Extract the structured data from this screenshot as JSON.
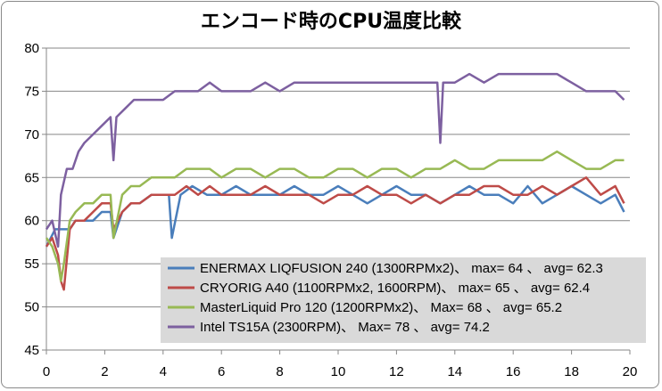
{
  "chart_data": {
    "type": "line",
    "title": "エンコード時のCPU温度比較",
    "xlim": [
      0,
      20
    ],
    "ylim": [
      45,
      80
    ],
    "x_ticks": [
      "0",
      "2",
      "4",
      "6",
      "8",
      "10",
      "12",
      "14",
      "16",
      "18",
      "20"
    ],
    "y_ticks": [
      "45",
      "50",
      "55",
      "60",
      "65",
      "70",
      "75",
      "80"
    ],
    "grid": "horizontal",
    "legend_position": "bottom-right",
    "series": [
      {
        "name": "ENERMAX LIQFUSION 240 (1300RPMx2)、 max= 64 、 avg= 62.3",
        "color": "#4a7ebb",
        "x": [
          0,
          0.3,
          0.5,
          0.8,
          1.0,
          1.3,
          1.6,
          1.9,
          2.2,
          2.3,
          2.6,
          2.9,
          3.2,
          3.6,
          4.0,
          4.2,
          4.3,
          4.6,
          5.0,
          5.5,
          6.0,
          6.5,
          7.0,
          7.5,
          8.0,
          8.5,
          9.0,
          9.5,
          10.0,
          10.5,
          11.0,
          11.5,
          12.0,
          12.5,
          13.0,
          13.5,
          14.0,
          14.5,
          15.0,
          15.5,
          16.0,
          16.5,
          17.0,
          17.5,
          18.0,
          18.5,
          19.0,
          19.5,
          19.8
        ],
        "values": [
          57,
          59,
          59,
          59,
          60,
          60,
          60,
          61,
          61,
          58,
          61,
          62,
          62,
          63,
          63,
          63,
          58,
          63,
          64,
          63,
          63,
          64,
          63,
          63,
          63,
          64,
          63,
          63,
          64,
          63,
          62,
          63,
          64,
          63,
          63,
          62,
          63,
          64,
          63,
          63,
          62,
          64,
          62,
          63,
          64,
          63,
          62,
          63,
          61
        ]
      },
      {
        "name": "CRYORIG A40 (1100RPMx2, 1600RPM)、 max= 65 、 avg= 62.4",
        "color": "#be4b48",
        "x": [
          0,
          0.2,
          0.4,
          0.5,
          0.6,
          0.8,
          1.0,
          1.3,
          1.6,
          1.9,
          2.2,
          2.3,
          2.6,
          2.9,
          3.2,
          3.6,
          4.0,
          4.4,
          4.8,
          5.2,
          5.6,
          6.0,
          6.5,
          7.0,
          7.5,
          8.0,
          8.5,
          9.0,
          9.5,
          10.0,
          10.5,
          11.0,
          11.5,
          12.0,
          12.5,
          13.0,
          13.5,
          14.0,
          14.5,
          15.0,
          15.5,
          16.0,
          16.5,
          17.0,
          17.5,
          18.0,
          18.5,
          19.0,
          19.5,
          19.8
        ],
        "values": [
          57,
          58,
          56,
          53,
          52,
          59,
          60,
          60,
          61,
          62,
          62,
          59,
          61,
          62,
          62,
          63,
          63,
          63,
          64,
          63,
          64,
          63,
          63,
          63,
          64,
          63,
          63,
          63,
          62,
          63,
          63,
          64,
          63,
          63,
          62,
          63,
          62,
          63,
          63,
          64,
          64,
          63,
          63,
          64,
          63,
          64,
          65,
          63,
          64,
          62
        ]
      },
      {
        "name": "MasterLiquid Pro 120 (1200RPMx2)、 Max= 68 、 avg= 65.2",
        "color": "#98b954",
        "x": [
          0,
          0.2,
          0.4,
          0.5,
          0.6,
          0.8,
          1.0,
          1.3,
          1.6,
          1.9,
          2.2,
          2.3,
          2.6,
          2.9,
          3.2,
          3.6,
          4.0,
          4.4,
          4.8,
          5.2,
          5.6,
          6.0,
          6.5,
          7.0,
          7.5,
          8.0,
          8.5,
          9.0,
          9.5,
          10.0,
          10.5,
          11.0,
          11.5,
          12.0,
          12.5,
          13.0,
          13.5,
          14.0,
          14.5,
          15.0,
          15.5,
          16.0,
          16.5,
          17.0,
          17.5,
          18.0,
          18.5,
          19.0,
          19.5,
          19.8
        ],
        "values": [
          58,
          57,
          55,
          53,
          55,
          60,
          61,
          62,
          62,
          63,
          63,
          58,
          63,
          64,
          64,
          65,
          65,
          65,
          66,
          66,
          66,
          65,
          66,
          66,
          65,
          66,
          66,
          65,
          65,
          66,
          66,
          65,
          66,
          66,
          65,
          66,
          66,
          67,
          66,
          66,
          67,
          67,
          67,
          67,
          68,
          67,
          66,
          66,
          67,
          67
        ]
      },
      {
        "name": "Intel TS15A (2300RPM)、 Max= 78 、 avg= 74.2",
        "color": "#7d60a0",
        "x": [
          0,
          0.2,
          0.4,
          0.5,
          0.7,
          0.9,
          1.1,
          1.3,
          1.6,
          1.9,
          2.2,
          2.3,
          2.4,
          2.7,
          3.0,
          3.3,
          3.6,
          4.0,
          4.4,
          4.8,
          5.2,
          5.6,
          6.0,
          6.5,
          7.0,
          7.5,
          8.0,
          8.5,
          9.0,
          9.5,
          10.0,
          10.5,
          11.0,
          11.5,
          12.0,
          12.5,
          13.0,
          13.4,
          13.5,
          13.6,
          14.0,
          14.5,
          15.0,
          15.5,
          16.0,
          16.5,
          17.0,
          17.5,
          18.0,
          18.5,
          19.0,
          19.5,
          19.8
        ],
        "values": [
          59,
          60,
          57,
          63,
          66,
          66,
          68,
          69,
          70,
          71,
          72,
          67,
          72,
          73,
          74,
          74,
          74,
          74,
          75,
          75,
          75,
          76,
          75,
          75,
          75,
          76,
          75,
          76,
          76,
          76,
          76,
          76,
          76,
          76,
          76,
          76,
          76,
          76,
          69,
          76,
          76,
          77,
          76,
          77,
          77,
          77,
          77,
          77,
          76,
          75,
          75,
          75,
          74
        ]
      }
    ]
  }
}
